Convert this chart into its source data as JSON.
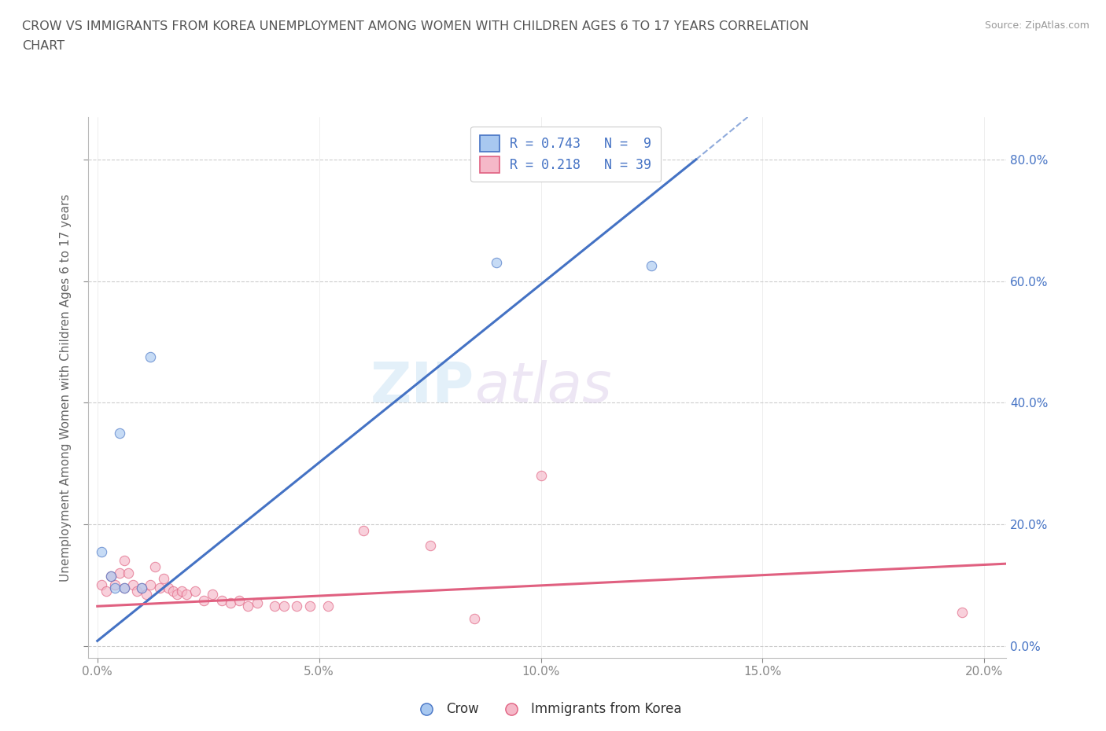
{
  "title_line1": "CROW VS IMMIGRANTS FROM KOREA UNEMPLOYMENT AMONG WOMEN WITH CHILDREN AGES 6 TO 17 YEARS CORRELATION",
  "title_line2": "CHART",
  "source_text": "Source: ZipAtlas.com",
  "xlabel": "",
  "ylabel": "Unemployment Among Women with Children Ages 6 to 17 years",
  "xlim": [
    -0.002,
    0.205
  ],
  "ylim": [
    -0.02,
    0.87
  ],
  "x_ticks": [
    0.0,
    0.05,
    0.1,
    0.15,
    0.2
  ],
  "x_tick_labels": [
    "0.0%",
    "5.0%",
    "10.0%",
    "15.0%",
    "20.0%"
  ],
  "y_ticks": [
    0.0,
    0.2,
    0.4,
    0.6,
    0.8
  ],
  "y_tick_labels": [
    "0.0%",
    "20.0%",
    "40.0%",
    "60.0%",
    "80.0%"
  ],
  "crow_color": "#a8c8f0",
  "crow_line_color": "#4472c4",
  "korea_color": "#f5b8c8",
  "korea_line_color": "#e06080",
  "crow_R": 0.743,
  "crow_N": 9,
  "korea_R": 0.218,
  "korea_N": 39,
  "crow_scatter_x": [
    0.001,
    0.003,
    0.004,
    0.005,
    0.006,
    0.01,
    0.012,
    0.09,
    0.125
  ],
  "crow_scatter_y": [
    0.155,
    0.115,
    0.095,
    0.35,
    0.095,
    0.095,
    0.475,
    0.63,
    0.625
  ],
  "korea_scatter_x": [
    0.001,
    0.002,
    0.003,
    0.004,
    0.005,
    0.006,
    0.006,
    0.007,
    0.008,
    0.009,
    0.01,
    0.011,
    0.012,
    0.013,
    0.014,
    0.015,
    0.016,
    0.017,
    0.018,
    0.019,
    0.02,
    0.022,
    0.024,
    0.026,
    0.028,
    0.03,
    0.032,
    0.034,
    0.036,
    0.04,
    0.042,
    0.045,
    0.048,
    0.052,
    0.06,
    0.075,
    0.085,
    0.1,
    0.195
  ],
  "korea_scatter_y": [
    0.1,
    0.09,
    0.115,
    0.1,
    0.12,
    0.14,
    0.095,
    0.12,
    0.1,
    0.09,
    0.095,
    0.085,
    0.1,
    0.13,
    0.095,
    0.11,
    0.095,
    0.09,
    0.085,
    0.09,
    0.085,
    0.09,
    0.075,
    0.085,
    0.075,
    0.07,
    0.075,
    0.065,
    0.07,
    0.065,
    0.065,
    0.065,
    0.065,
    0.065,
    0.19,
    0.165,
    0.045,
    0.28,
    0.055
  ],
  "crow_line_x": [
    0.0,
    0.135
  ],
  "crow_line_y": [
    0.008,
    0.8
  ],
  "korea_line_x": [
    0.0,
    0.205
  ],
  "korea_line_y": [
    0.065,
    0.135
  ],
  "watermark_zip": "ZIP",
  "watermark_atlas": "atlas",
  "scatter_size": 80,
  "scatter_alpha": 0.65
}
